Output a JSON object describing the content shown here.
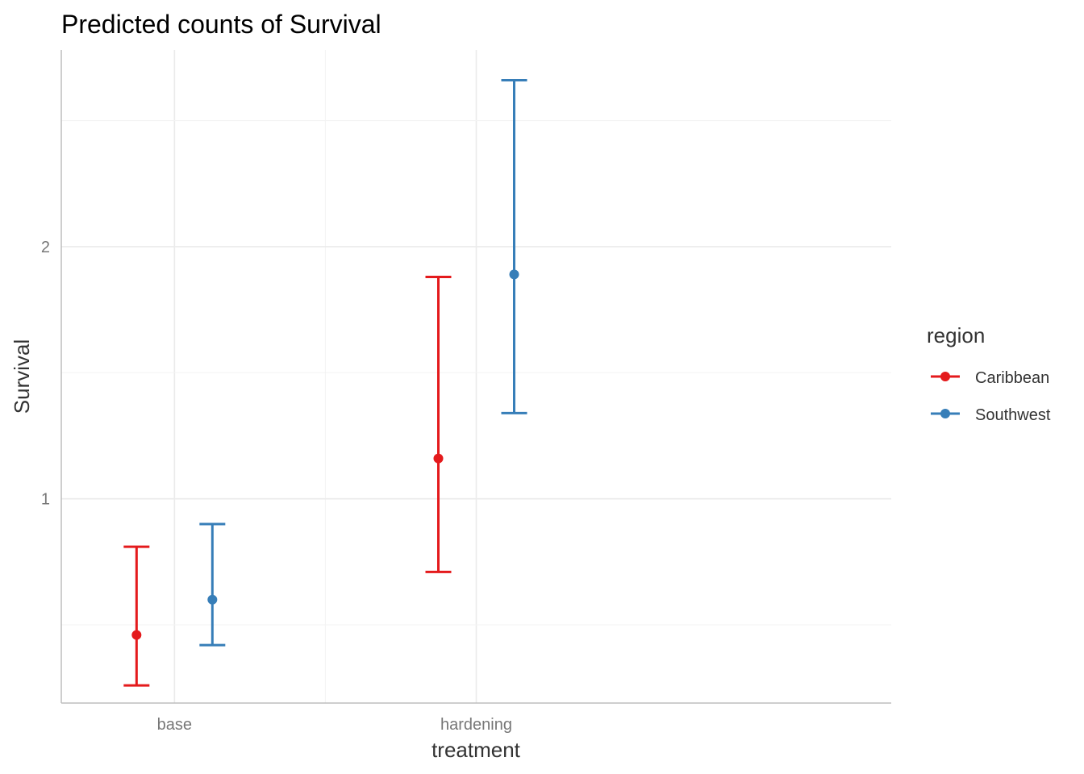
{
  "chart_data": {
    "type": "errorbar",
    "title": "Predicted counts of Survival",
    "xlabel": "treatment",
    "ylabel": "Survival",
    "categories": [
      "base",
      "hardening"
    ],
    "y_ticks": [
      1,
      2
    ],
    "y_tick_labels": [
      "1",
      "2"
    ],
    "ylim": [
      0.19,
      2.78
    ],
    "grid": true,
    "legend": {
      "title": "region",
      "position": "right"
    },
    "series": [
      {
        "name": "Caribbean",
        "color": "#E41A1C",
        "values": [
          0.46,
          1.16
        ],
        "lower": [
          0.26,
          0.71
        ],
        "upper": [
          0.81,
          1.88
        ]
      },
      {
        "name": "Southwest",
        "color": "#377EB8",
        "values": [
          0.6,
          1.89
        ],
        "lower": [
          0.42,
          1.34
        ],
        "upper": [
          0.9,
          2.66
        ]
      }
    ]
  }
}
